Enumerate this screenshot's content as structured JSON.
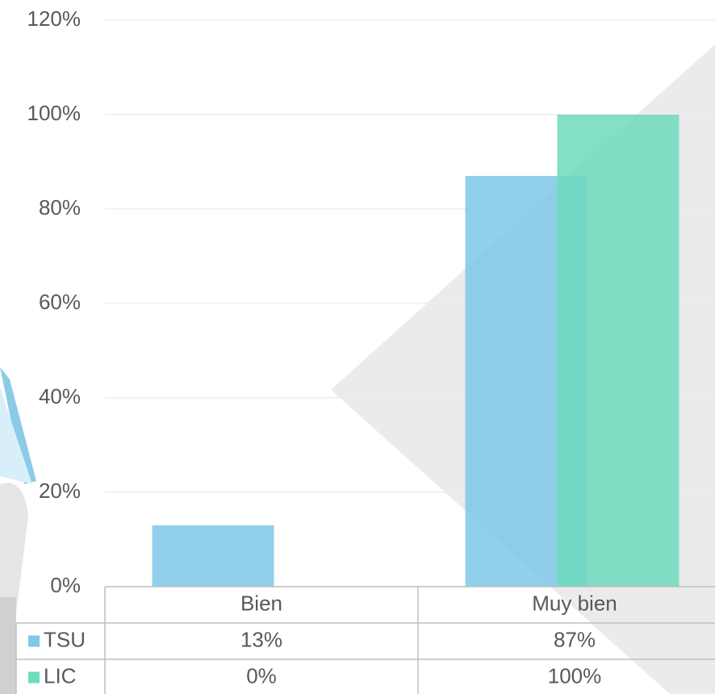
{
  "chart_data": {
    "type": "bar",
    "categories": [
      "Bien",
      "Muy bien"
    ],
    "series": [
      {
        "name": "TSU",
        "color": "#7ec8e8",
        "values": [
          13,
          87
        ],
        "value_labels": [
          "13%",
          "87%"
        ]
      },
      {
        "name": "LIC",
        "color": "#6ddbbd",
        "values": [
          0,
          100
        ],
        "value_labels": [
          "0%",
          "100%"
        ]
      }
    ],
    "ylim": [
      0,
      120
    ],
    "yticks": [
      {
        "value": 0,
        "label": "0%"
      },
      {
        "value": 20,
        "label": "20%"
      },
      {
        "value": 40,
        "label": "40%"
      },
      {
        "value": 60,
        "label": "60%"
      },
      {
        "value": 80,
        "label": "80%"
      },
      {
        "value": 100,
        "label": "100%"
      },
      {
        "value": 120,
        "label": "120%"
      }
    ],
    "grid": true,
    "data_table": true
  }
}
